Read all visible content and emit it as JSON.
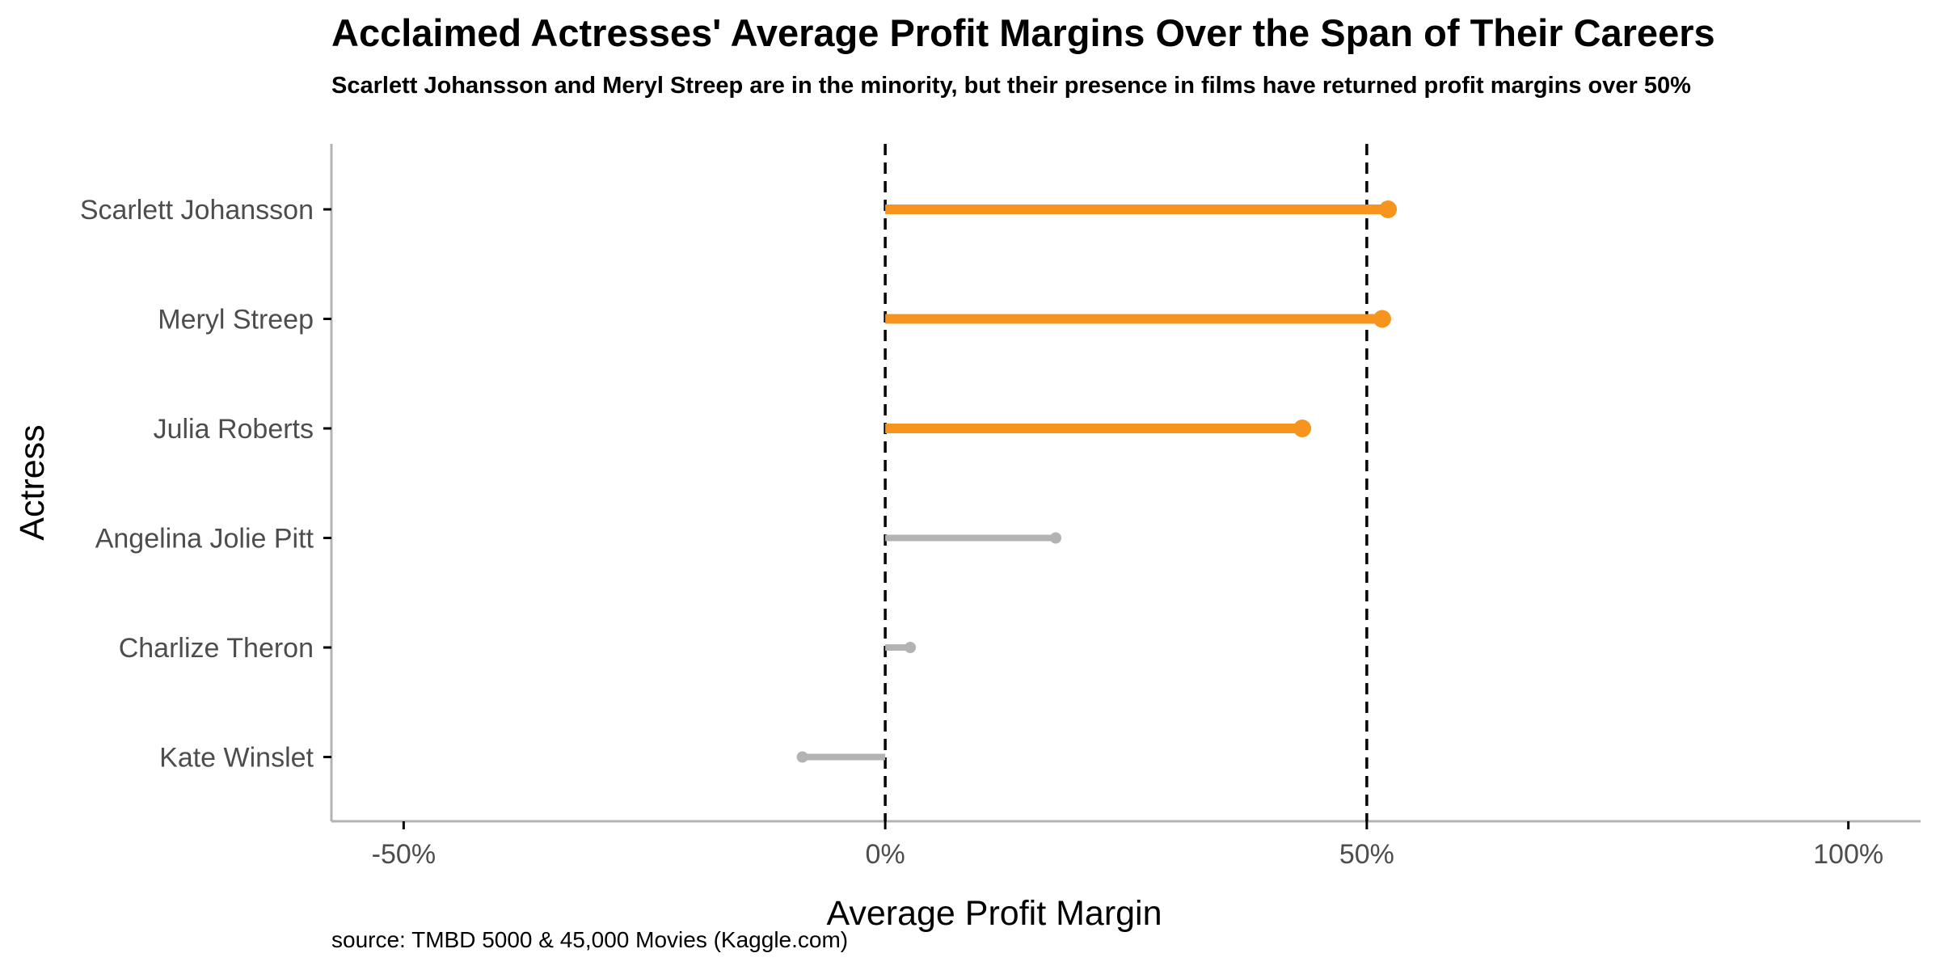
{
  "chart_data": {
    "type": "lollipop",
    "title": "Acclaimed Actresses' Average Profit Margins Over the Span of Their Careers",
    "subtitle": "Scarlett Johansson and Meryl Streep are in the minority, but their presence in films have returned profit margins over 50%",
    "xlabel": "Average Profit Margin",
    "ylabel": "Actress",
    "caption": "source: TMBD 5000 & 45,000 Movies (Kaggle.com)",
    "xlim": [
      -57.5,
      107.5
    ],
    "x_ticks": [
      -50,
      0,
      50,
      100
    ],
    "x_tick_labels": [
      "-50%",
      "0%",
      "50%",
      "100%"
    ],
    "reference_lines": [
      0,
      50
    ],
    "grid": false,
    "categories": [
      "Scarlett Johansson",
      "Meryl Streep",
      "Julia Roberts",
      "Angelina Jolie Pitt",
      "Charlize Theron",
      "Kate Winslet"
    ],
    "values": [
      52.2,
      51.6,
      43.3,
      17.7,
      2.6,
      -8.6
    ],
    "highlighted": [
      true,
      true,
      true,
      false,
      false,
      false
    ],
    "colors": {
      "highlight": "#F7941D",
      "muted": "#B3B3B3",
      "reference_line": "#000000",
      "axis": "#B3B3B3",
      "tick_label": "#4D4D4D"
    }
  }
}
